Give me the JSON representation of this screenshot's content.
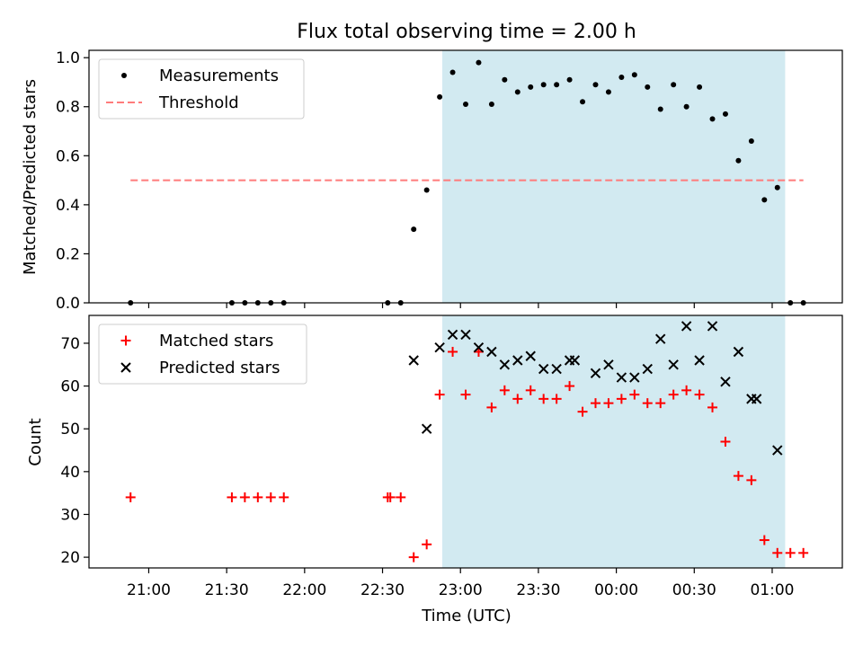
{
  "chart_data": [
    {
      "type": "scatter",
      "title": "Flux total observing time = 2.00 h",
      "xlabel": "",
      "ylabel": "Matched/Predicted stars",
      "ylim": [
        0.0,
        1.03
      ],
      "yticks": [
        0.0,
        0.2,
        0.4,
        0.6,
        0.8,
        1.0
      ],
      "yticklabels": [
        "0.0",
        "0.2",
        "0.4",
        "0.6",
        "0.8",
        "1.0"
      ],
      "legend_position": "upper left",
      "shaded_span_x": [
        "22:53",
        "01:05"
      ],
      "series": [
        {
          "name": "Measurements",
          "marker": "dot",
          "color": "#000000",
          "x": [
            "20:53",
            "21:32",
            "21:37",
            "21:42",
            "21:47",
            "21:52",
            "22:32",
            "22:37",
            "22:42",
            "22:47",
            "22:52",
            "22:57",
            "23:02",
            "23:07",
            "23:12",
            "23:17",
            "23:22",
            "23:27",
            "23:32",
            "23:37",
            "23:42",
            "23:47",
            "23:52",
            "23:57",
            "00:02",
            "00:07",
            "00:12",
            "00:17",
            "00:22",
            "00:27",
            "00:32",
            "00:37",
            "00:42",
            "00:47",
            "00:52",
            "00:57",
            "01:02",
            "01:07",
            "01:12"
          ],
          "y": [
            0.0,
            0.0,
            0.0,
            0.0,
            0.0,
            0.0,
            0.0,
            0.0,
            0.3,
            0.46,
            0.84,
            0.94,
            0.81,
            0.98,
            0.81,
            0.91,
            0.86,
            0.88,
            0.89,
            0.89,
            0.91,
            0.82,
            0.89,
            0.86,
            0.92,
            0.93,
            0.88,
            0.79,
            0.89,
            0.8,
            0.88,
            0.75,
            0.77,
            0.58,
            0.66,
            0.42,
            0.47,
            0.0,
            0.0
          ]
        },
        {
          "name": "Threshold",
          "style": "dashed",
          "color": "#ff7b7b",
          "x": [
            "20:53",
            "01:12"
          ],
          "y": [
            0.5,
            0.5
          ]
        }
      ]
    },
    {
      "type": "scatter",
      "title": "",
      "xlabel": "Time (UTC)",
      "ylabel": "Count",
      "ylim": [
        17.5,
        76.5
      ],
      "yticks": [
        20,
        30,
        40,
        50,
        60,
        70
      ],
      "yticklabels": [
        "20",
        "30",
        "40",
        "50",
        "60",
        "70"
      ],
      "xlim": [
        "20:37",
        "01:27"
      ],
      "xticks": [
        "21:00",
        "21:30",
        "22:00",
        "22:30",
        "23:00",
        "23:30",
        "00:00",
        "00:30",
        "01:00"
      ],
      "xticklabels": [
        "21:00",
        "21:30",
        "22:00",
        "22:30",
        "23:00",
        "23:30",
        "00:00",
        "00:30",
        "01:00"
      ],
      "legend_position": "upper left",
      "shaded_span_x": [
        "22:53",
        "01:05"
      ],
      "series": [
        {
          "name": "Matched stars",
          "marker": "plus",
          "color": "#ff0000",
          "x": [
            "20:53",
            "21:32",
            "21:37",
            "21:42",
            "21:47",
            "21:52",
            "22:32",
            "22:33",
            "22:37",
            "22:42",
            "22:47",
            "22:52",
            "22:57",
            "23:02",
            "23:07",
            "23:12",
            "23:17",
            "23:22",
            "23:27",
            "23:32",
            "23:37",
            "23:42",
            "23:47",
            "23:52",
            "23:57",
            "00:02",
            "00:07",
            "00:12",
            "00:17",
            "00:22",
            "00:27",
            "00:32",
            "00:37",
            "00:42",
            "00:47",
            "00:52",
            "00:57",
            "01:02",
            "01:07",
            "01:12"
          ],
          "y": [
            34,
            34,
            34,
            34,
            34,
            34,
            34,
            34,
            34,
            20,
            23,
            58,
            68,
            58,
            68,
            55,
            59,
            57,
            59,
            57,
            57,
            60,
            54,
            56,
            56,
            57,
            58,
            56,
            56,
            58,
            59,
            58,
            55,
            47,
            39,
            38,
            24,
            21,
            21,
            21
          ]
        },
        {
          "name": "Predicted stars",
          "marker": "x",
          "color": "#000000",
          "x": [
            "22:42",
            "22:47",
            "22:52",
            "22:57",
            "23:02",
            "23:07",
            "23:12",
            "23:17",
            "23:22",
            "23:27",
            "23:32",
            "23:37",
            "23:42",
            "23:44",
            "23:52",
            "23:57",
            "00:02",
            "00:07",
            "00:12",
            "00:17",
            "00:22",
            "00:27",
            "00:32",
            "00:37",
            "00:42",
            "00:47",
            "00:52",
            "00:54",
            "01:02"
          ],
          "y": [
            66,
            50,
            69,
            72,
            72,
            69,
            68,
            65,
            66,
            67,
            64,
            64,
            66,
            66,
            63,
            65,
            62,
            62,
            64,
            71,
            65,
            74,
            66,
            74,
            61,
            68,
            57,
            57,
            45
          ]
        }
      ]
    }
  ]
}
